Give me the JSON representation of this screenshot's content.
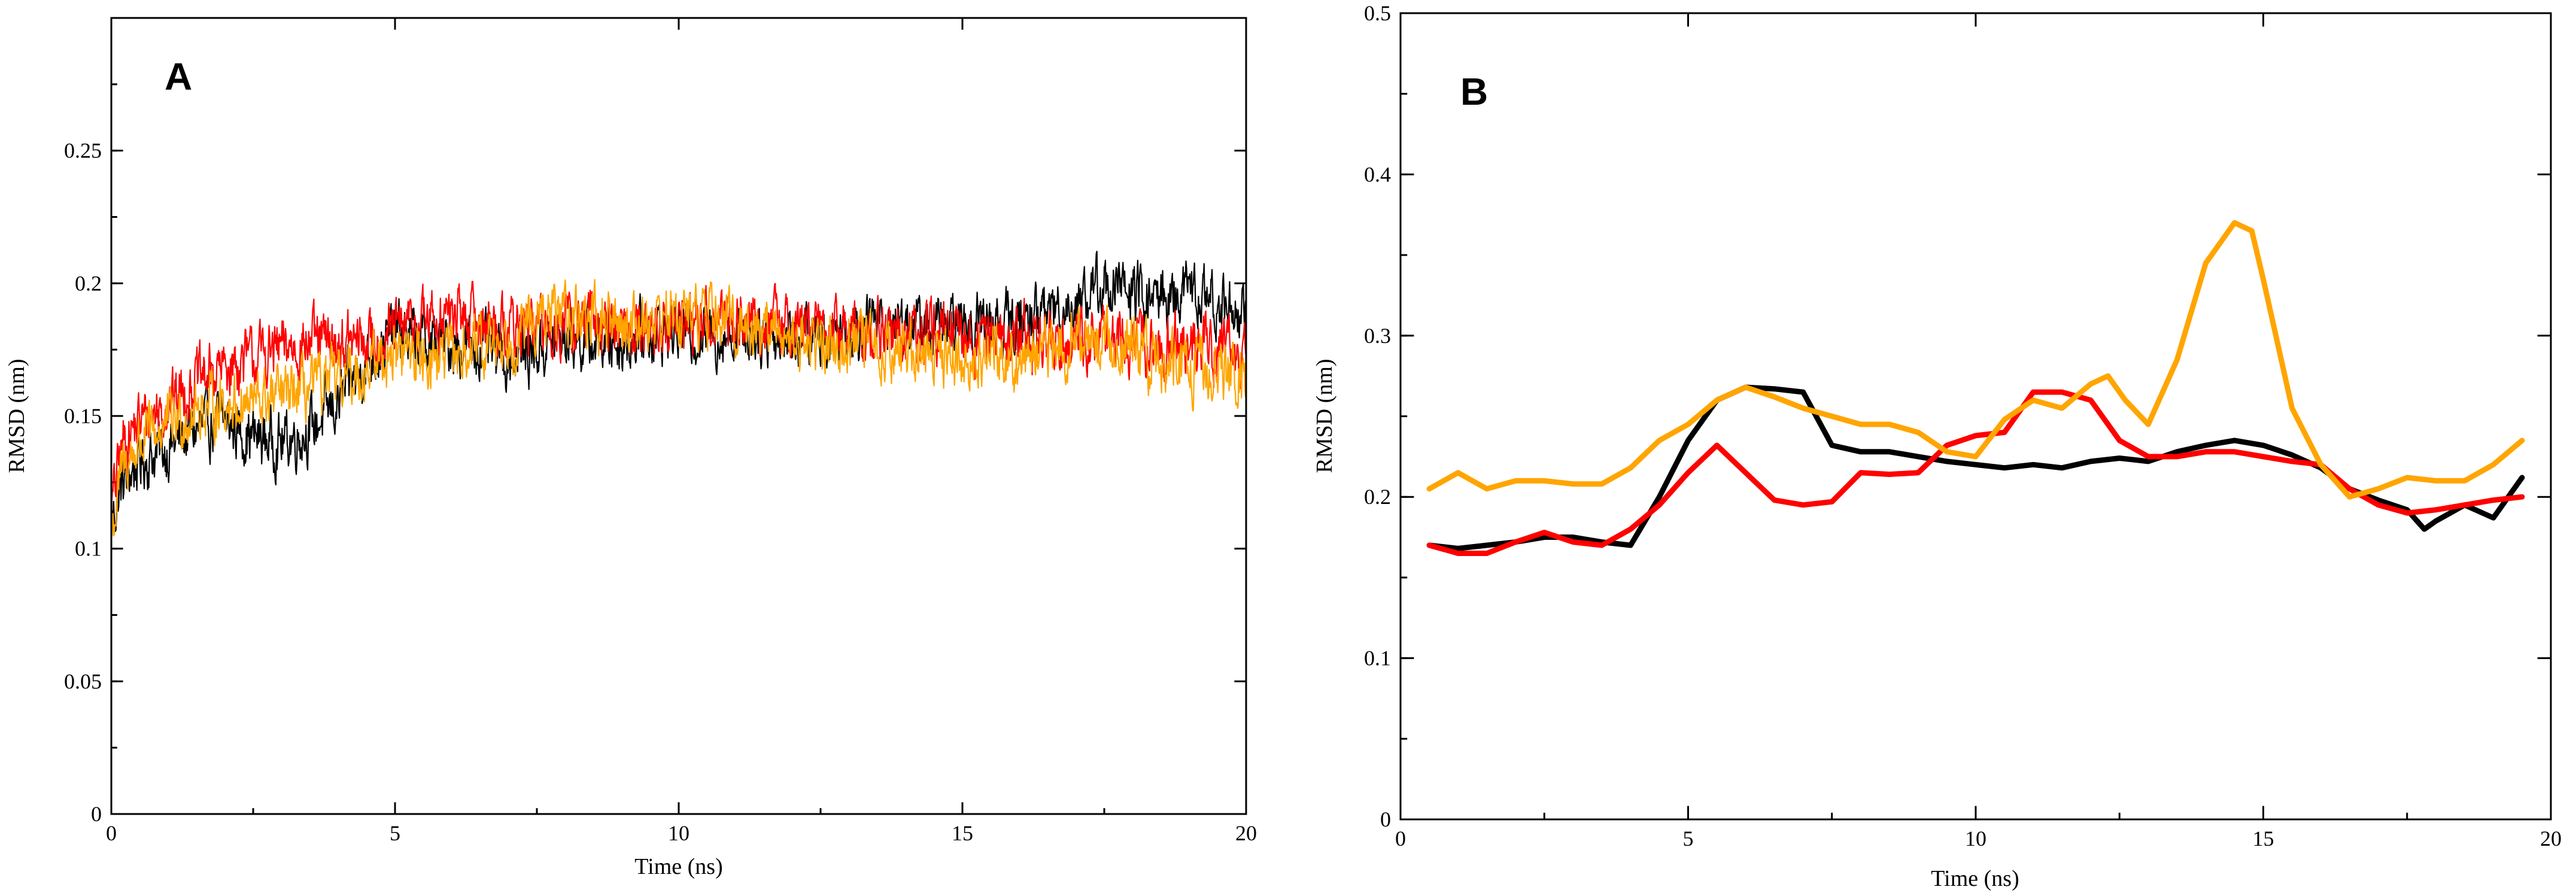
{
  "chart_data": [
    {
      "type": "line",
      "panel_label": "A",
      "title": "",
      "xlabel": "Time (ns)",
      "ylabel": "RMSD (nm)",
      "xlim": [
        0,
        20
      ],
      "ylim": [
        0,
        0.3
      ],
      "xticks": [
        0,
        5,
        10,
        15,
        20
      ],
      "xtick_labels": [
        "0",
        "5",
        "10",
        "15",
        "20"
      ],
      "yticks": [
        0,
        0.05,
        0.1,
        0.15,
        0.2,
        0.25
      ],
      "ytick_labels": [
        "0",
        "0.05",
        "0.1",
        "0.15",
        "0.2",
        "0.25"
      ],
      "grid": false,
      "noisy": true,
      "series": [
        {
          "name": "black",
          "color": "#000000",
          "x": [
            0,
            0.2,
            0.5,
            1,
            1.5,
            2,
            2.5,
            3,
            3.5,
            4,
            4.5,
            5,
            5.5,
            6,
            6.5,
            7,
            7.5,
            8,
            8.5,
            9,
            9.5,
            10,
            10.5,
            11,
            11.5,
            12,
            12.5,
            13,
            13.5,
            14,
            14.5,
            15,
            15.5,
            16,
            16.5,
            17,
            17.5,
            18,
            18.5,
            19,
            19.5,
            20
          ],
          "values": [
            0.11,
            0.125,
            0.133,
            0.138,
            0.145,
            0.148,
            0.142,
            0.14,
            0.145,
            0.155,
            0.17,
            0.182,
            0.178,
            0.177,
            0.176,
            0.172,
            0.175,
            0.18,
            0.178,
            0.178,
            0.182,
            0.183,
            0.18,
            0.182,
            0.181,
            0.18,
            0.18,
            0.184,
            0.186,
            0.185,
            0.183,
            0.185,
            0.186,
            0.185,
            0.19,
            0.193,
            0.2,
            0.196,
            0.194,
            0.197,
            0.192,
            0.19
          ]
        },
        {
          "name": "red",
          "color": "#ff0000",
          "x": [
            0,
            0.2,
            0.5,
            1,
            1.5,
            2,
            2.5,
            3,
            3.5,
            4,
            4.5,
            5,
            5.5,
            6,
            6.5,
            7,
            7.5,
            8,
            8.5,
            9,
            9.5,
            10,
            10.5,
            11,
            11.5,
            12,
            12.5,
            13,
            13.5,
            14,
            14.5,
            15,
            15.5,
            16,
            16.5,
            17,
            17.5,
            18,
            18.5,
            19,
            19.5,
            20
          ],
          "values": [
            0.115,
            0.14,
            0.148,
            0.155,
            0.163,
            0.168,
            0.172,
            0.175,
            0.178,
            0.177,
            0.178,
            0.182,
            0.186,
            0.188,
            0.186,
            0.184,
            0.183,
            0.184,
            0.185,
            0.184,
            0.183,
            0.185,
            0.187,
            0.186,
            0.185,
            0.184,
            0.183,
            0.182,
            0.181,
            0.181,
            0.18,
            0.18,
            0.18,
            0.181,
            0.179,
            0.18,
            0.177,
            0.177,
            0.176,
            0.177,
            0.174,
            0.172
          ]
        },
        {
          "name": "orange",
          "color": "#ffa500",
          "x": [
            0,
            0.2,
            0.5,
            1,
            1.5,
            2,
            2.5,
            3,
            3.5,
            4,
            4.5,
            5,
            5.5,
            6,
            6.5,
            7,
            7.5,
            8,
            8.5,
            9,
            9.5,
            10,
            10.5,
            11,
            11.5,
            12,
            12.5,
            13,
            13.5,
            14,
            14.5,
            15,
            15.5,
            16,
            16.5,
            17,
            17.5,
            18,
            18.5,
            19,
            19.5,
            20
          ],
          "values": [
            0.105,
            0.13,
            0.14,
            0.147,
            0.152,
            0.155,
            0.155,
            0.157,
            0.16,
            0.163,
            0.168,
            0.175,
            0.173,
            0.172,
            0.175,
            0.18,
            0.185,
            0.19,
            0.186,
            0.185,
            0.187,
            0.188,
            0.188,
            0.185,
            0.183,
            0.18,
            0.177,
            0.178,
            0.176,
            0.175,
            0.174,
            0.172,
            0.173,
            0.172,
            0.174,
            0.18,
            0.178,
            0.175,
            0.17,
            0.168,
            0.167,
            0.165
          ]
        }
      ]
    },
    {
      "type": "line",
      "panel_label": "B",
      "title": "",
      "xlabel": "Time (ns)",
      "ylabel": "RMSD (nm)",
      "xlim": [
        0,
        20
      ],
      "ylim": [
        0,
        0.5
      ],
      "xticks": [
        0,
        5,
        10,
        15,
        20
      ],
      "xtick_labels": [
        "0",
        "5",
        "10",
        "15",
        "20"
      ],
      "yticks": [
        0,
        0.1,
        0.2,
        0.3,
        0.4,
        0.5
      ],
      "ytick_labels": [
        "0",
        "0.1",
        "0.2",
        "0.3",
        "0.4",
        "0.5"
      ],
      "grid": false,
      "noisy": false,
      "series": [
        {
          "name": "black",
          "color": "#000000",
          "x": [
            0.5,
            1,
            1.5,
            2,
            2.5,
            3,
            3.5,
            4,
            4.5,
            5,
            5.5,
            6,
            6.5,
            7,
            7.5,
            8,
            8.5,
            9,
            9.5,
            10,
            10.5,
            11,
            11.5,
            12,
            12.5,
            13,
            13.5,
            14,
            14.5,
            15,
            15.5,
            16,
            16.5,
            17,
            17.5,
            17.8,
            18,
            18.5,
            19,
            19.5
          ],
          "values": [
            0.17,
            0.168,
            0.17,
            0.172,
            0.175,
            0.175,
            0.172,
            0.17,
            0.2,
            0.235,
            0.26,
            0.268,
            0.267,
            0.265,
            0.232,
            0.228,
            0.228,
            0.225,
            0.222,
            0.22,
            0.218,
            0.22,
            0.218,
            0.222,
            0.224,
            0.222,
            0.228,
            0.232,
            0.235,
            0.232,
            0.226,
            0.218,
            0.205,
            0.198,
            0.192,
            0.18,
            0.185,
            0.195,
            0.187,
            0.212
          ]
        },
        {
          "name": "red",
          "color": "#ff0000",
          "x": [
            0.5,
            1,
            1.5,
            2,
            2.5,
            3,
            3.5,
            4,
            4.5,
            5,
            5.5,
            6,
            6.5,
            7,
            7.5,
            8,
            8.5,
            9,
            9.5,
            10,
            10.5,
            11,
            11.5,
            12,
            12.5,
            13,
            13.5,
            14,
            14.5,
            15,
            15.5,
            16,
            16.5,
            17,
            17.5,
            18,
            18.5,
            19,
            19.5
          ],
          "values": [
            0.17,
            0.165,
            0.165,
            0.172,
            0.178,
            0.172,
            0.17,
            0.18,
            0.195,
            0.215,
            0.232,
            0.215,
            0.198,
            0.195,
            0.197,
            0.215,
            0.214,
            0.215,
            0.232,
            0.238,
            0.24,
            0.265,
            0.265,
            0.26,
            0.235,
            0.225,
            0.225,
            0.228,
            0.228,
            0.225,
            0.222,
            0.22,
            0.205,
            0.195,
            0.19,
            0.192,
            0.195,
            0.198,
            0.2
          ]
        },
        {
          "name": "orange",
          "color": "#ffa500",
          "x": [
            0.5,
            1,
            1.5,
            2,
            2.5,
            3,
            3.5,
            4,
            4.5,
            5,
            5.5,
            6,
            6.5,
            7,
            7.5,
            8,
            8.5,
            9,
            9.5,
            10,
            10.5,
            11,
            11.5,
            12,
            12.3,
            12.6,
            13,
            13.5,
            14,
            14.5,
            14.8,
            15,
            15.5,
            16,
            16.5,
            17,
            17.5,
            18,
            18.5,
            19,
            19.5
          ],
          "values": [
            0.205,
            0.215,
            0.205,
            0.21,
            0.21,
            0.208,
            0.208,
            0.218,
            0.235,
            0.245,
            0.26,
            0.268,
            0.262,
            0.255,
            0.25,
            0.245,
            0.245,
            0.24,
            0.228,
            0.225,
            0.248,
            0.26,
            0.255,
            0.27,
            0.275,
            0.26,
            0.245,
            0.285,
            0.345,
            0.37,
            0.365,
            0.335,
            0.255,
            0.22,
            0.2,
            0.205,
            0.212,
            0.21,
            0.21,
            0.22,
            0.235
          ]
        }
      ]
    }
  ]
}
